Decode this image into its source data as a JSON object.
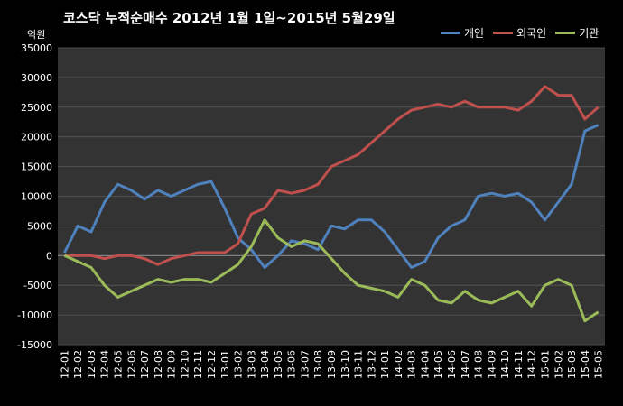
{
  "chart_data": {
    "type": "line",
    "title": "코스닥  누적순매수 2012년 1월 1일~2015년 5월29일",
    "y_unit": "억원",
    "xlabel": "",
    "ylabel": "",
    "ylim": [
      -15000,
      35000
    ],
    "y_ticks": [
      -15000,
      -10000,
      -5000,
      0,
      5000,
      10000,
      15000,
      20000,
      25000,
      30000,
      35000
    ],
    "grid": true,
    "legend_position": "top-right",
    "categories": [
      "12-01",
      "12-02",
      "12-03",
      "12-04",
      "12-05",
      "12-06",
      "12-07",
      "12-08",
      "12-09",
      "12-10",
      "12-11",
      "12-12",
      "13-01",
      "13-02",
      "13-03",
      "13-04",
      "13-05",
      "13-06",
      "13-07",
      "13-08",
      "13-09",
      "13-10",
      "13-11",
      "13-12",
      "14-01",
      "14-02",
      "14-03",
      "14-04",
      "14-05",
      "14-06",
      "14-07",
      "14-08",
      "14-09",
      "14-10",
      "14-11",
      "14-12",
      "15-01",
      "15-02",
      "15-03",
      "15-04",
      "15-05"
    ],
    "series": [
      {
        "name": "개인",
        "color": "#4f81bd",
        "values": [
          500,
          5000,
          4000,
          9000,
          12000,
          11000,
          9500,
          11000,
          10000,
          11000,
          12000,
          12500,
          8000,
          3000,
          1000,
          -2000,
          0,
          2500,
          2000,
          1000,
          5000,
          4500,
          6000,
          6000,
          4000,
          1000,
          -2000,
          -1000,
          3000,
          5000,
          6000,
          10000,
          10500,
          10000,
          10500,
          9000,
          6000,
          9000,
          12000,
          21000,
          22000
        ]
      },
      {
        "name": "외국인",
        "color": "#c0504d",
        "values": [
          0,
          0,
          0,
          -500,
          0,
          0,
          -500,
          -1500,
          -500,
          0,
          500,
          500,
          500,
          2000,
          7000,
          8000,
          11000,
          10500,
          11000,
          12000,
          15000,
          16000,
          17000,
          19000,
          21000,
          23000,
          24500,
          25000,
          25500,
          25000,
          26000,
          25000,
          25000,
          25000,
          24500,
          26000,
          28500,
          27000,
          27000,
          23000,
          25000
        ]
      },
      {
        "name": "기관",
        "color": "#9bbb59",
        "values": [
          0,
          -1000,
          -2000,
          -5000,
          -7000,
          -6000,
          -5000,
          -4000,
          -4500,
          -4000,
          -4000,
          -4500,
          -3000,
          -1500,
          1500,
          6000,
          3000,
          1500,
          2500,
          2000,
          -500,
          -3000,
          -5000,
          -5500,
          -6000,
          -7000,
          -4000,
          -5000,
          -7500,
          -8000,
          -6000,
          -7500,
          -8000,
          -7000,
          -6000,
          -8500,
          -5000,
          -4000,
          -5000,
          -11000,
          -9500
        ]
      }
    ]
  }
}
